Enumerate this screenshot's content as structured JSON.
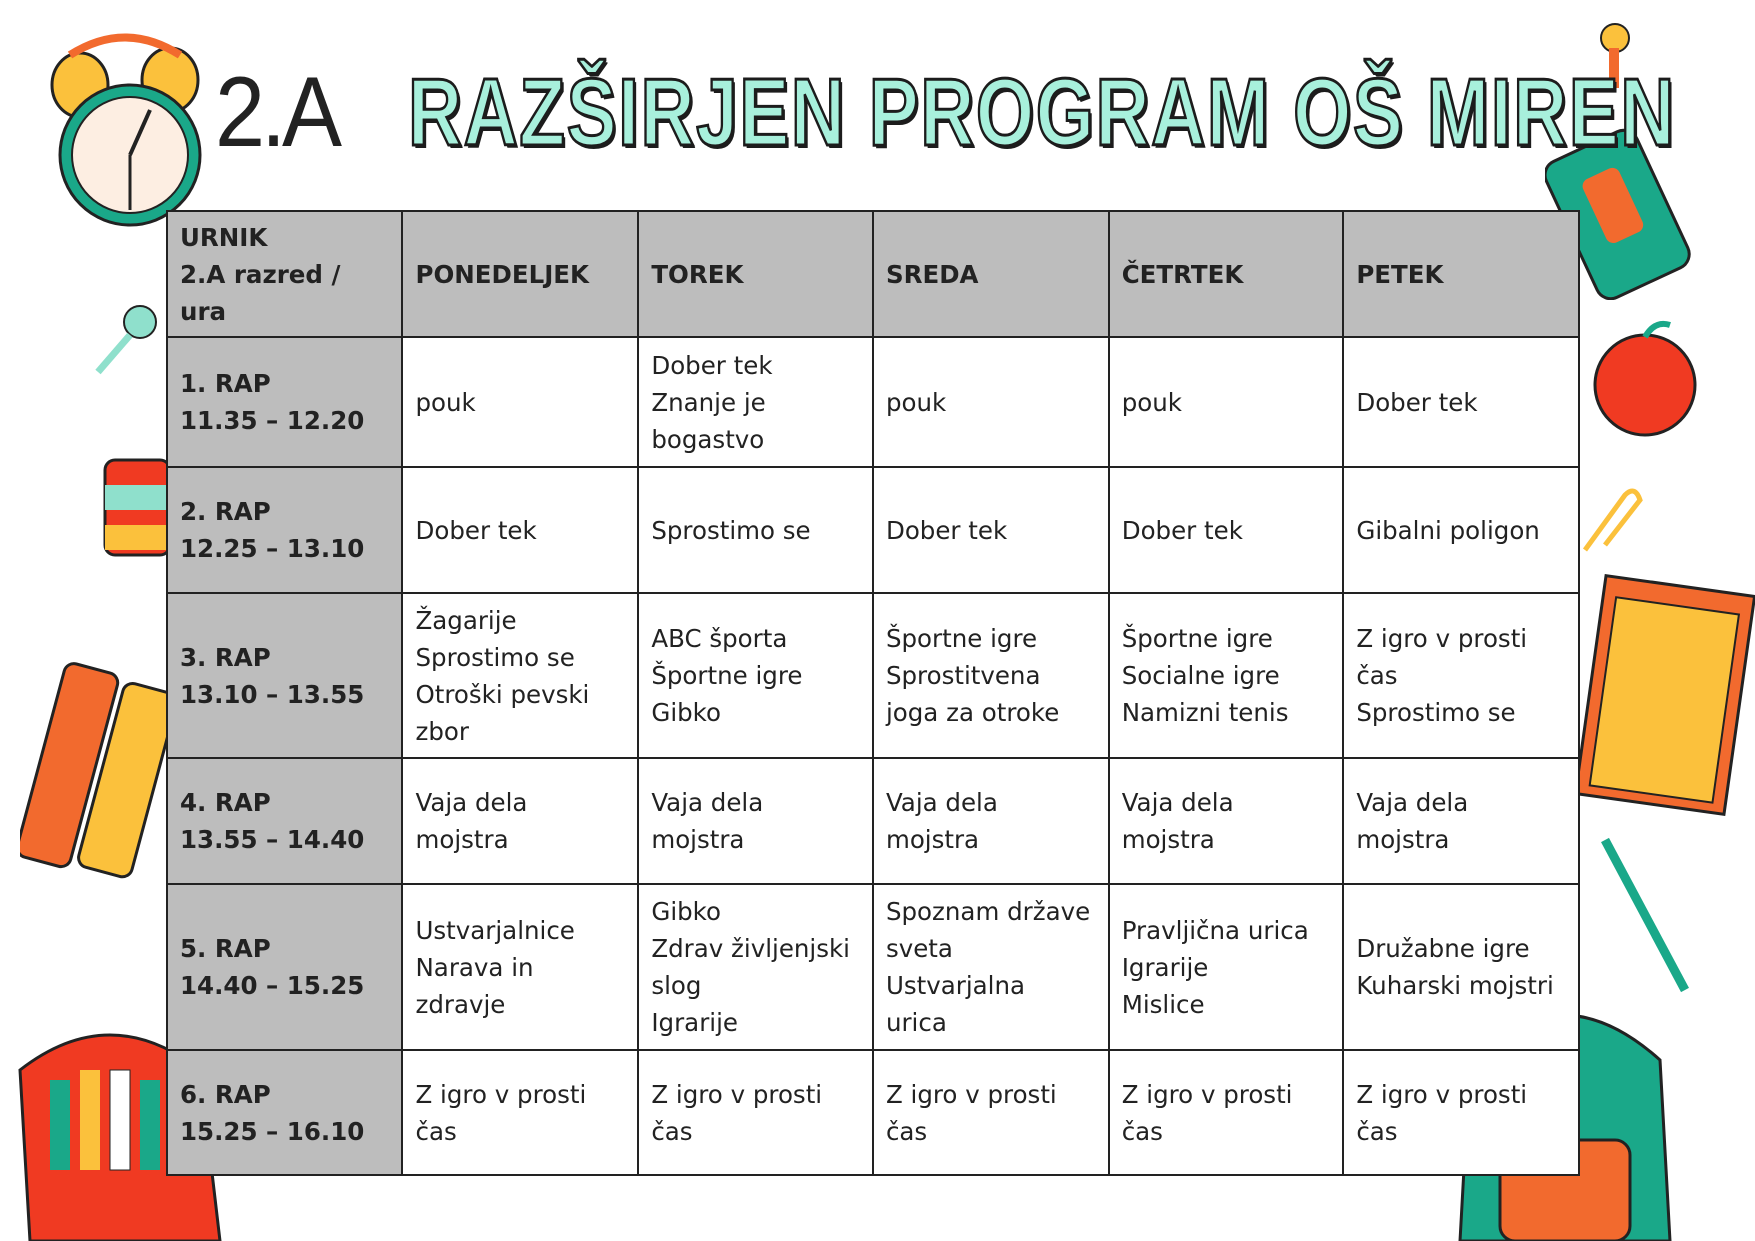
{
  "header": {
    "class_label": "2.A",
    "title": "RAZŠIRJEN PROGRAM OŠ MIREN"
  },
  "table": {
    "corner": [
      "URNIK",
      "2.A razred / ura"
    ],
    "days": [
      "PONEDELJEK",
      "TOREK",
      "SREDA",
      "ČETRTEK",
      "PETEK"
    ],
    "rows": [
      {
        "period": [
          "1. RAP",
          "11.35 – 12.20"
        ],
        "cells": [
          [
            "pouk"
          ],
          [
            "Dober tek",
            "Znanje je",
            "bogastvo"
          ],
          [
            "pouk"
          ],
          [
            "pouk"
          ],
          [
            "Dober tek"
          ]
        ]
      },
      {
        "period": [
          "2. RAP",
          "12.25 – 13.10"
        ],
        "cells": [
          [
            "Dober tek"
          ],
          [
            "Sprostimo se"
          ],
          [
            "Dober tek"
          ],
          [
            "Dober tek"
          ],
          [
            "Gibalni poligon"
          ]
        ]
      },
      {
        "period": [
          "3. RAP",
          "13.10 – 13.55"
        ],
        "cells": [
          [
            "Žagarije",
            "Sprostimo se",
            "Otroški pevski",
            "zbor"
          ],
          [
            "ABC športa",
            "Športne igre",
            "Gibko"
          ],
          [
            "Športne igre",
            "Sprostitvena",
            "joga za otroke"
          ],
          [
            "Športne igre",
            "Socialne igre",
            "Namizni tenis"
          ],
          [
            "Z igro v prosti",
            "čas",
            "Sprostimo se"
          ]
        ]
      },
      {
        "period": [
          "4. RAP",
          "13.55 – 14.40"
        ],
        "cells": [
          [
            "Vaja dela",
            "mojstra"
          ],
          [
            "Vaja dela",
            "mojstra"
          ],
          [
            "Vaja dela",
            "mojstra"
          ],
          [
            "Vaja dela",
            "mojstra"
          ],
          [
            "Vaja dela",
            "mojstra"
          ]
        ]
      },
      {
        "period": [
          "5. RAP",
          "14.40 – 15.25"
        ],
        "cells": [
          [
            "Ustvarjalnice",
            "Narava in",
            "zdravje"
          ],
          [
            "Gibko",
            "Zdrav življenjski",
            "slog",
            "Igrarije"
          ],
          [
            "Spoznam države",
            "sveta",
            "Ustvarjalna",
            "urica"
          ],
          [
            "Pravljična urica",
            "Igrarije",
            "Mislice"
          ],
          [
            "Družabne igre",
            "Kuharski mojstri"
          ]
        ]
      },
      {
        "period": [
          "6. RAP",
          "15.25 – 16.10"
        ],
        "cells": [
          [
            "Z igro v prosti",
            "čas"
          ],
          [
            "Z igro v prosti",
            "čas"
          ],
          [
            "Z igro v prosti",
            "čas"
          ],
          [
            "Z igro v prosti",
            "čas"
          ],
          [
            "Z igro v prosti",
            "čas"
          ]
        ]
      }
    ]
  },
  "colors": {
    "title_fill": "#a8f0dc",
    "header_bg": "#bdbdbd",
    "teal": "#1aa889",
    "orange": "#f26a2e",
    "yellow": "#fbc13c"
  }
}
